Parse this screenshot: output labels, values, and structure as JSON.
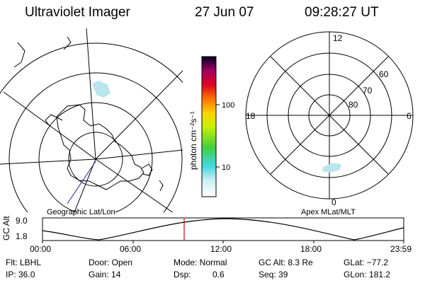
{
  "header": {
    "title": "Ultraviolet Imager",
    "date": "27 Jun 07",
    "time": "09:28:27 UT"
  },
  "colorbar": {
    "unit_label": "photon cm⁻²s⁻¹",
    "tick_100": "100",
    "tick_10": "10"
  },
  "left_map": {
    "caption": "Geographic Lat/Lon"
  },
  "right_map": {
    "caption": "Apex MLat/MLT",
    "mlt_12": "12",
    "mlt_18": "18",
    "mlt_6": "6",
    "mlt_0": "0",
    "lat_60": "60",
    "lat_70": "70",
    "lat_80": "80"
  },
  "timeline": {
    "axis_label": "GC Alt",
    "y_top": "9.0",
    "y_bottom": "1.8",
    "ticks": [
      "00:00",
      "06:00",
      "12:00",
      "18:00",
      "23:59"
    ]
  },
  "info": {
    "filter": "Flt: LBHL",
    "ip": "IP: 36.0",
    "door": "Door: Open",
    "gain": "Gain: 14",
    "mode": "Mode: Normal",
    "dsp_label": "Dsp:",
    "dsp_value": "0.6",
    "gc_alt": "GC Alt: 8.3 Re",
    "seq": "Seq: 39",
    "glat": "GLat: −77.2",
    "glon": "GLon: 181.2"
  },
  "colors": {
    "orbit_line": "#2222aa",
    "time_marker": "#cc0000",
    "aurora": "#b8e6ec"
  }
}
